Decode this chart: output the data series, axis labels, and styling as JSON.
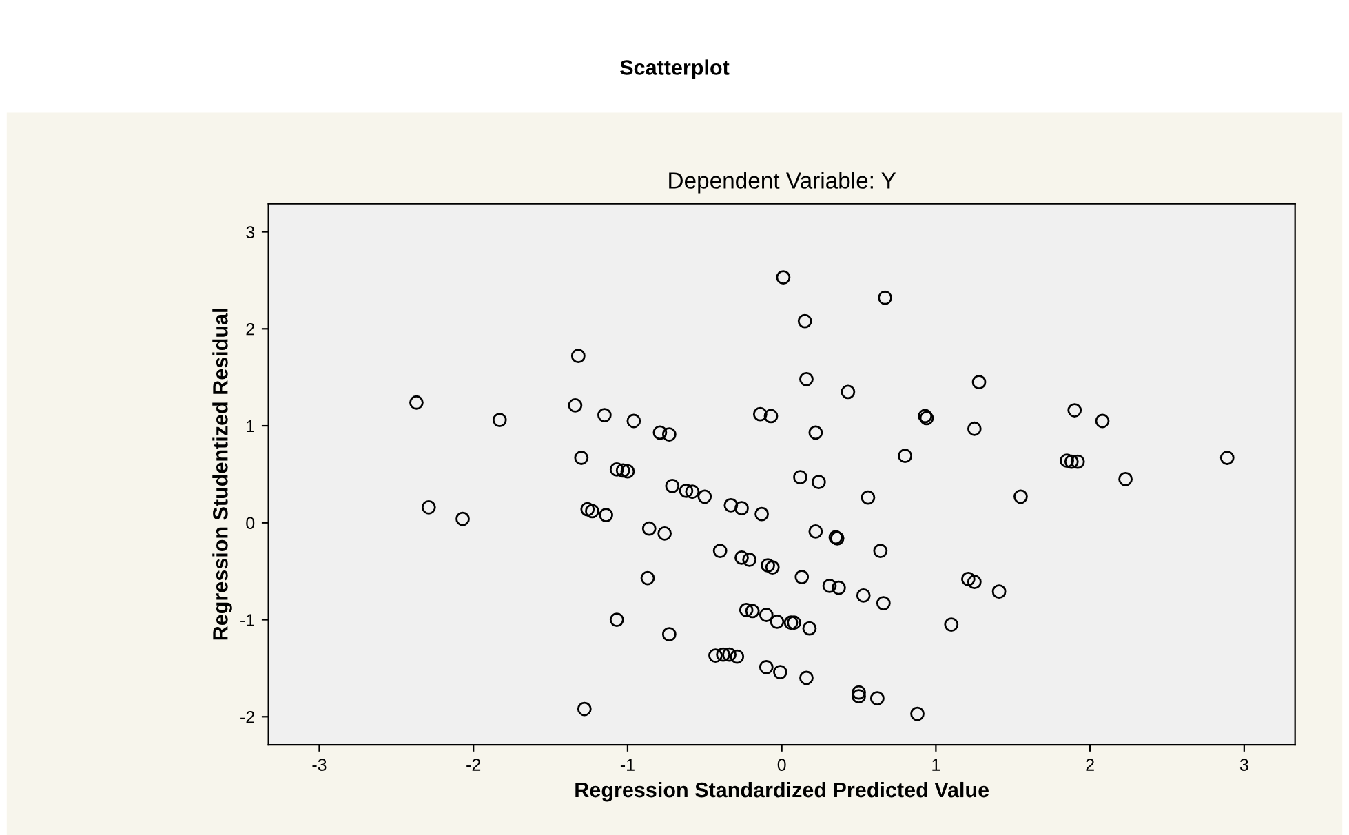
{
  "chart_data": {
    "type": "scatter",
    "title": "Scatterplot",
    "subtitle": "Dependent Variable: Y",
    "xlabel": "Regression Standardized Predicted Value",
    "ylabel": "Regression Studentized Residual",
    "x": [
      0.01,
      -1.32,
      -2.37,
      -1.83,
      -1.34,
      -1.15,
      -0.96,
      -0.79,
      -0.73,
      -0.14,
      -0.07,
      -1.3,
      -1.07,
      -1.03,
      -1.0,
      -0.71,
      -0.62,
      -0.58,
      -0.5,
      -0.33,
      -0.26,
      -0.13,
      -2.29,
      -2.07,
      -1.26,
      -1.23,
      -1.14,
      -0.86,
      -0.76,
      -0.4,
      -0.26,
      -0.21,
      -0.09,
      -0.06,
      -0.87,
      -1.07,
      -0.73,
      -0.23,
      -0.19,
      -0.1,
      -0.03,
      -0.43,
      -0.38,
      -0.34,
      -0.29,
      -0.1,
      -0.01,
      -1.28,
      0.06,
      0.08,
      0.18,
      0.16,
      0.5,
      0.5,
      0.62,
      0.88,
      0.22,
      0.35,
      0.36,
      0.64,
      0.13,
      0.31,
      0.37,
      0.53,
      0.66,
      1.1,
      1.21,
      1.25,
      1.41,
      0.67,
      0.15,
      0.16,
      0.43,
      1.28,
      0.93,
      0.94,
      1.9,
      2.08,
      0.22,
      1.25,
      0.8,
      1.85,
      1.88,
      1.92,
      2.89,
      0.12,
      0.24,
      0.56,
      1.55,
      2.23
    ],
    "values": [
      2.53,
      1.72,
      1.24,
      1.06,
      1.21,
      1.11,
      1.05,
      0.93,
      0.91,
      1.12,
      1.1,
      0.67,
      0.55,
      0.54,
      0.53,
      0.38,
      0.33,
      0.32,
      0.27,
      0.18,
      0.15,
      0.09,
      0.16,
      0.04,
      0.14,
      0.12,
      0.08,
      -0.06,
      -0.11,
      -0.29,
      -0.36,
      -0.38,
      -0.44,
      -0.46,
      -0.57,
      -1.0,
      -1.15,
      -0.9,
      -0.91,
      -0.95,
      -1.02,
      -1.37,
      -1.36,
      -1.36,
      -1.38,
      -1.49,
      -1.54,
      -1.92,
      -1.03,
      -1.03,
      -1.09,
      -1.6,
      -1.75,
      -1.79,
      -1.81,
      -1.97,
      -0.09,
      -0.15,
      -0.16,
      -0.29,
      -0.56,
      -0.65,
      -0.67,
      -0.75,
      -0.83,
      -1.05,
      -0.58,
      -0.61,
      -0.71,
      2.32,
      2.08,
      1.48,
      1.35,
      1.45,
      1.1,
      1.08,
      1.16,
      1.05,
      0.93,
      0.97,
      0.69,
      0.64,
      0.63,
      0.63,
      0.67,
      0.47,
      0.42,
      0.26,
      0.27,
      0.45
    ],
    "color": "#000000",
    "marker": "circle",
    "grid": false,
    "xlim": [
      -3.33,
      3.33
    ],
    "ylim": [
      -2.29,
      3.29
    ],
    "xticks": [
      {
        "value": -3,
        "label": "-3"
      },
      {
        "value": -2,
        "label": "-2"
      },
      {
        "value": -1,
        "label": "-1"
      },
      0,
      1,
      2,
      3
    ],
    "yticks": [
      {
        "value": -2,
        "label": "-2"
      },
      {
        "value": -1,
        "label": "-1"
      },
      0,
      1,
      2,
      3
    ]
  }
}
